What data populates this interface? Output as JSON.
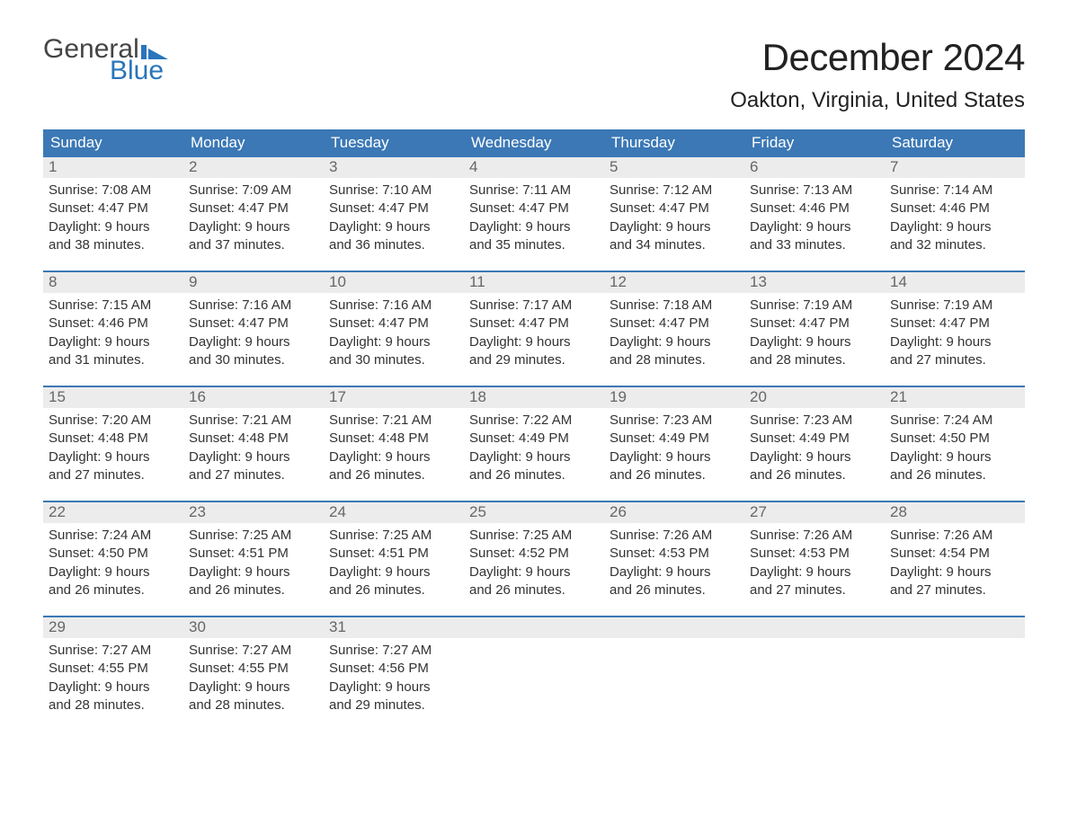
{
  "logo": {
    "word1": "General",
    "word2": "Blue",
    "accent_color": "#2a75bb",
    "text_color": "#444444"
  },
  "header": {
    "month_title": "December 2024",
    "location": "Oakton, Virginia, United States"
  },
  "colors": {
    "header_bg": "#3b78b5",
    "header_text": "#ffffff",
    "daynum_bg": "#ececec",
    "daynum_text": "#666666",
    "week_border": "#3b78b5",
    "body_text": "#333333",
    "background": "#ffffff"
  },
  "typography": {
    "month_title_pt": 42,
    "location_pt": 24,
    "weekday_pt": 17,
    "daynum_pt": 17,
    "body_pt": 15,
    "family": "Arial"
  },
  "weekdays": [
    "Sunday",
    "Monday",
    "Tuesday",
    "Wednesday",
    "Thursday",
    "Friday",
    "Saturday"
  ],
  "weeks": [
    [
      {
        "n": "1",
        "sunrise": "Sunrise: 7:08 AM",
        "sunset": "Sunset: 4:47 PM",
        "d1": "Daylight: 9 hours",
        "d2": "and 38 minutes."
      },
      {
        "n": "2",
        "sunrise": "Sunrise: 7:09 AM",
        "sunset": "Sunset: 4:47 PM",
        "d1": "Daylight: 9 hours",
        "d2": "and 37 minutes."
      },
      {
        "n": "3",
        "sunrise": "Sunrise: 7:10 AM",
        "sunset": "Sunset: 4:47 PM",
        "d1": "Daylight: 9 hours",
        "d2": "and 36 minutes."
      },
      {
        "n": "4",
        "sunrise": "Sunrise: 7:11 AM",
        "sunset": "Sunset: 4:47 PM",
        "d1": "Daylight: 9 hours",
        "d2": "and 35 minutes."
      },
      {
        "n": "5",
        "sunrise": "Sunrise: 7:12 AM",
        "sunset": "Sunset: 4:47 PM",
        "d1": "Daylight: 9 hours",
        "d2": "and 34 minutes."
      },
      {
        "n": "6",
        "sunrise": "Sunrise: 7:13 AM",
        "sunset": "Sunset: 4:46 PM",
        "d1": "Daylight: 9 hours",
        "d2": "and 33 minutes."
      },
      {
        "n": "7",
        "sunrise": "Sunrise: 7:14 AM",
        "sunset": "Sunset: 4:46 PM",
        "d1": "Daylight: 9 hours",
        "d2": "and 32 minutes."
      }
    ],
    [
      {
        "n": "8",
        "sunrise": "Sunrise: 7:15 AM",
        "sunset": "Sunset: 4:46 PM",
        "d1": "Daylight: 9 hours",
        "d2": "and 31 minutes."
      },
      {
        "n": "9",
        "sunrise": "Sunrise: 7:16 AM",
        "sunset": "Sunset: 4:47 PM",
        "d1": "Daylight: 9 hours",
        "d2": "and 30 minutes."
      },
      {
        "n": "10",
        "sunrise": "Sunrise: 7:16 AM",
        "sunset": "Sunset: 4:47 PM",
        "d1": "Daylight: 9 hours",
        "d2": "and 30 minutes."
      },
      {
        "n": "11",
        "sunrise": "Sunrise: 7:17 AM",
        "sunset": "Sunset: 4:47 PM",
        "d1": "Daylight: 9 hours",
        "d2": "and 29 minutes."
      },
      {
        "n": "12",
        "sunrise": "Sunrise: 7:18 AM",
        "sunset": "Sunset: 4:47 PM",
        "d1": "Daylight: 9 hours",
        "d2": "and 28 minutes."
      },
      {
        "n": "13",
        "sunrise": "Sunrise: 7:19 AM",
        "sunset": "Sunset: 4:47 PM",
        "d1": "Daylight: 9 hours",
        "d2": "and 28 minutes."
      },
      {
        "n": "14",
        "sunrise": "Sunrise: 7:19 AM",
        "sunset": "Sunset: 4:47 PM",
        "d1": "Daylight: 9 hours",
        "d2": "and 27 minutes."
      }
    ],
    [
      {
        "n": "15",
        "sunrise": "Sunrise: 7:20 AM",
        "sunset": "Sunset: 4:48 PM",
        "d1": "Daylight: 9 hours",
        "d2": "and 27 minutes."
      },
      {
        "n": "16",
        "sunrise": "Sunrise: 7:21 AM",
        "sunset": "Sunset: 4:48 PM",
        "d1": "Daylight: 9 hours",
        "d2": "and 27 minutes."
      },
      {
        "n": "17",
        "sunrise": "Sunrise: 7:21 AM",
        "sunset": "Sunset: 4:48 PM",
        "d1": "Daylight: 9 hours",
        "d2": "and 26 minutes."
      },
      {
        "n": "18",
        "sunrise": "Sunrise: 7:22 AM",
        "sunset": "Sunset: 4:49 PM",
        "d1": "Daylight: 9 hours",
        "d2": "and 26 minutes."
      },
      {
        "n": "19",
        "sunrise": "Sunrise: 7:23 AM",
        "sunset": "Sunset: 4:49 PM",
        "d1": "Daylight: 9 hours",
        "d2": "and 26 minutes."
      },
      {
        "n": "20",
        "sunrise": "Sunrise: 7:23 AM",
        "sunset": "Sunset: 4:49 PM",
        "d1": "Daylight: 9 hours",
        "d2": "and 26 minutes."
      },
      {
        "n": "21",
        "sunrise": "Sunrise: 7:24 AM",
        "sunset": "Sunset: 4:50 PM",
        "d1": "Daylight: 9 hours",
        "d2": "and 26 minutes."
      }
    ],
    [
      {
        "n": "22",
        "sunrise": "Sunrise: 7:24 AM",
        "sunset": "Sunset: 4:50 PM",
        "d1": "Daylight: 9 hours",
        "d2": "and 26 minutes."
      },
      {
        "n": "23",
        "sunrise": "Sunrise: 7:25 AM",
        "sunset": "Sunset: 4:51 PM",
        "d1": "Daylight: 9 hours",
        "d2": "and 26 minutes."
      },
      {
        "n": "24",
        "sunrise": "Sunrise: 7:25 AM",
        "sunset": "Sunset: 4:51 PM",
        "d1": "Daylight: 9 hours",
        "d2": "and 26 minutes."
      },
      {
        "n": "25",
        "sunrise": "Sunrise: 7:25 AM",
        "sunset": "Sunset: 4:52 PM",
        "d1": "Daylight: 9 hours",
        "d2": "and 26 minutes."
      },
      {
        "n": "26",
        "sunrise": "Sunrise: 7:26 AM",
        "sunset": "Sunset: 4:53 PM",
        "d1": "Daylight: 9 hours",
        "d2": "and 26 minutes."
      },
      {
        "n": "27",
        "sunrise": "Sunrise: 7:26 AM",
        "sunset": "Sunset: 4:53 PM",
        "d1": "Daylight: 9 hours",
        "d2": "and 27 minutes."
      },
      {
        "n": "28",
        "sunrise": "Sunrise: 7:26 AM",
        "sunset": "Sunset: 4:54 PM",
        "d1": "Daylight: 9 hours",
        "d2": "and 27 minutes."
      }
    ],
    [
      {
        "n": "29",
        "sunrise": "Sunrise: 7:27 AM",
        "sunset": "Sunset: 4:55 PM",
        "d1": "Daylight: 9 hours",
        "d2": "and 28 minutes."
      },
      {
        "n": "30",
        "sunrise": "Sunrise: 7:27 AM",
        "sunset": "Sunset: 4:55 PM",
        "d1": "Daylight: 9 hours",
        "d2": "and 28 minutes."
      },
      {
        "n": "31",
        "sunrise": "Sunrise: 7:27 AM",
        "sunset": "Sunset: 4:56 PM",
        "d1": "Daylight: 9 hours",
        "d2": "and 29 minutes."
      },
      {
        "empty": true
      },
      {
        "empty": true
      },
      {
        "empty": true
      },
      {
        "empty": true
      }
    ]
  ]
}
